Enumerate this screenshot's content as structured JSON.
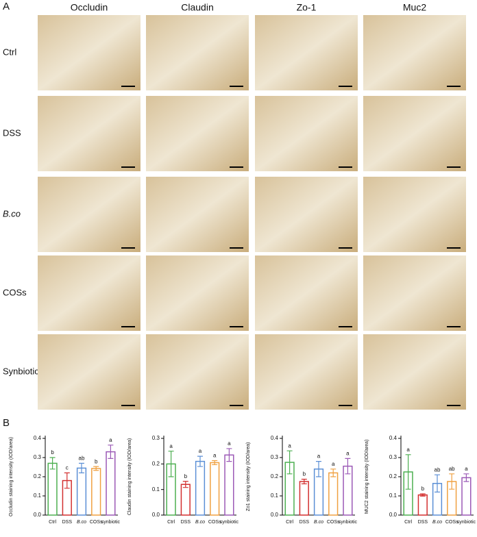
{
  "panel_a": {
    "label": "A",
    "columns": [
      "Occludin",
      "Claudin",
      "Zo-1",
      "Muc2"
    ],
    "rows": [
      "Ctrl",
      "DSS",
      "B.co",
      "COSs",
      "Synbiotic"
    ]
  },
  "panel_b": {
    "label": "B"
  },
  "chart_data": [
    {
      "type": "bar",
      "y_label": "Occludin staining intensity (IOD/area)",
      "categories": [
        "Ctrl",
        "DSS",
        "B.co",
        "COSs",
        "synbiotic"
      ],
      "colors": [
        "#4caf50",
        "#d32f2f",
        "#5b8fd6",
        "#f0a040",
        "#9b59b6"
      ],
      "values": [
        0.27,
        0.18,
        0.245,
        0.243,
        0.33
      ],
      "errors": [
        0.03,
        0.04,
        0.025,
        0.01,
        0.035
      ],
      "letters": [
        "b",
        "c",
        "ab",
        "b",
        "a"
      ],
      "ylim": [
        0,
        0.4
      ],
      "yticks": [
        {
          "value": 0,
          "label": "0.0"
        },
        0.1,
        0.2,
        0.3,
        0.4
      ]
    },
    {
      "type": "bar",
      "y_label": "Claudin staining intensity (IOD/area)",
      "categories": [
        "Ctrl",
        "DSS",
        "B.co",
        "COSs",
        "synbiotic"
      ],
      "colors": [
        "#4caf50",
        "#d32f2f",
        "#5b8fd6",
        "#f0a040",
        "#9b59b6"
      ],
      "values": [
        0.2,
        0.12,
        0.21,
        0.205,
        0.235
      ],
      "errors": [
        0.05,
        0.012,
        0.02,
        0.008,
        0.025
      ],
      "letters": [
        "a",
        "b",
        "a",
        "a",
        "a"
      ],
      "ylim": [
        0,
        0.3
      ],
      "yticks": [
        {
          "value": 0,
          "label": "0.0"
        },
        0.1,
        0.2,
        0.3
      ]
    },
    {
      "type": "bar",
      "y_label": "Zo1 staining intensity (IOD/area)",
      "categories": [
        "Ctrl",
        "DSS",
        "B.co",
        "COSs",
        "synbiotic"
      ],
      "colors": [
        "#4caf50",
        "#d32f2f",
        "#5b8fd6",
        "#f0a040",
        "#9b59b6"
      ],
      "values": [
        0.275,
        0.175,
        0.24,
        0.22,
        0.255
      ],
      "errors": [
        0.06,
        0.012,
        0.04,
        0.02,
        0.04
      ],
      "letters": [
        "a",
        "b",
        "a",
        "a",
        "a"
      ],
      "ylim": [
        0,
        0.4
      ],
      "yticks": [
        {
          "value": 0,
          "label": "0.0"
        },
        0.1,
        0.2,
        0.3,
        0.4
      ]
    },
    {
      "type": "bar",
      "y_label": "MUC2 staining intensity (IOD/area)",
      "categories": [
        "Ctrl",
        "DSS",
        "B.co",
        "COSs",
        "synbiotic"
      ],
      "colors": [
        "#4caf50",
        "#d32f2f",
        "#5b8fd6",
        "#f0a040",
        "#9b59b6"
      ],
      "values": [
        0.225,
        0.105,
        0.165,
        0.175,
        0.195
      ],
      "errors": [
        0.09,
        0.006,
        0.045,
        0.04,
        0.02
      ],
      "letters": [
        "a",
        "b",
        "ab",
        "ab",
        "a"
      ],
      "ylim": [
        0,
        0.4
      ],
      "yticks": [
        {
          "value": 0,
          "label": "0.0"
        },
        0.1,
        0.2,
        0.3,
        0.4
      ]
    }
  ]
}
